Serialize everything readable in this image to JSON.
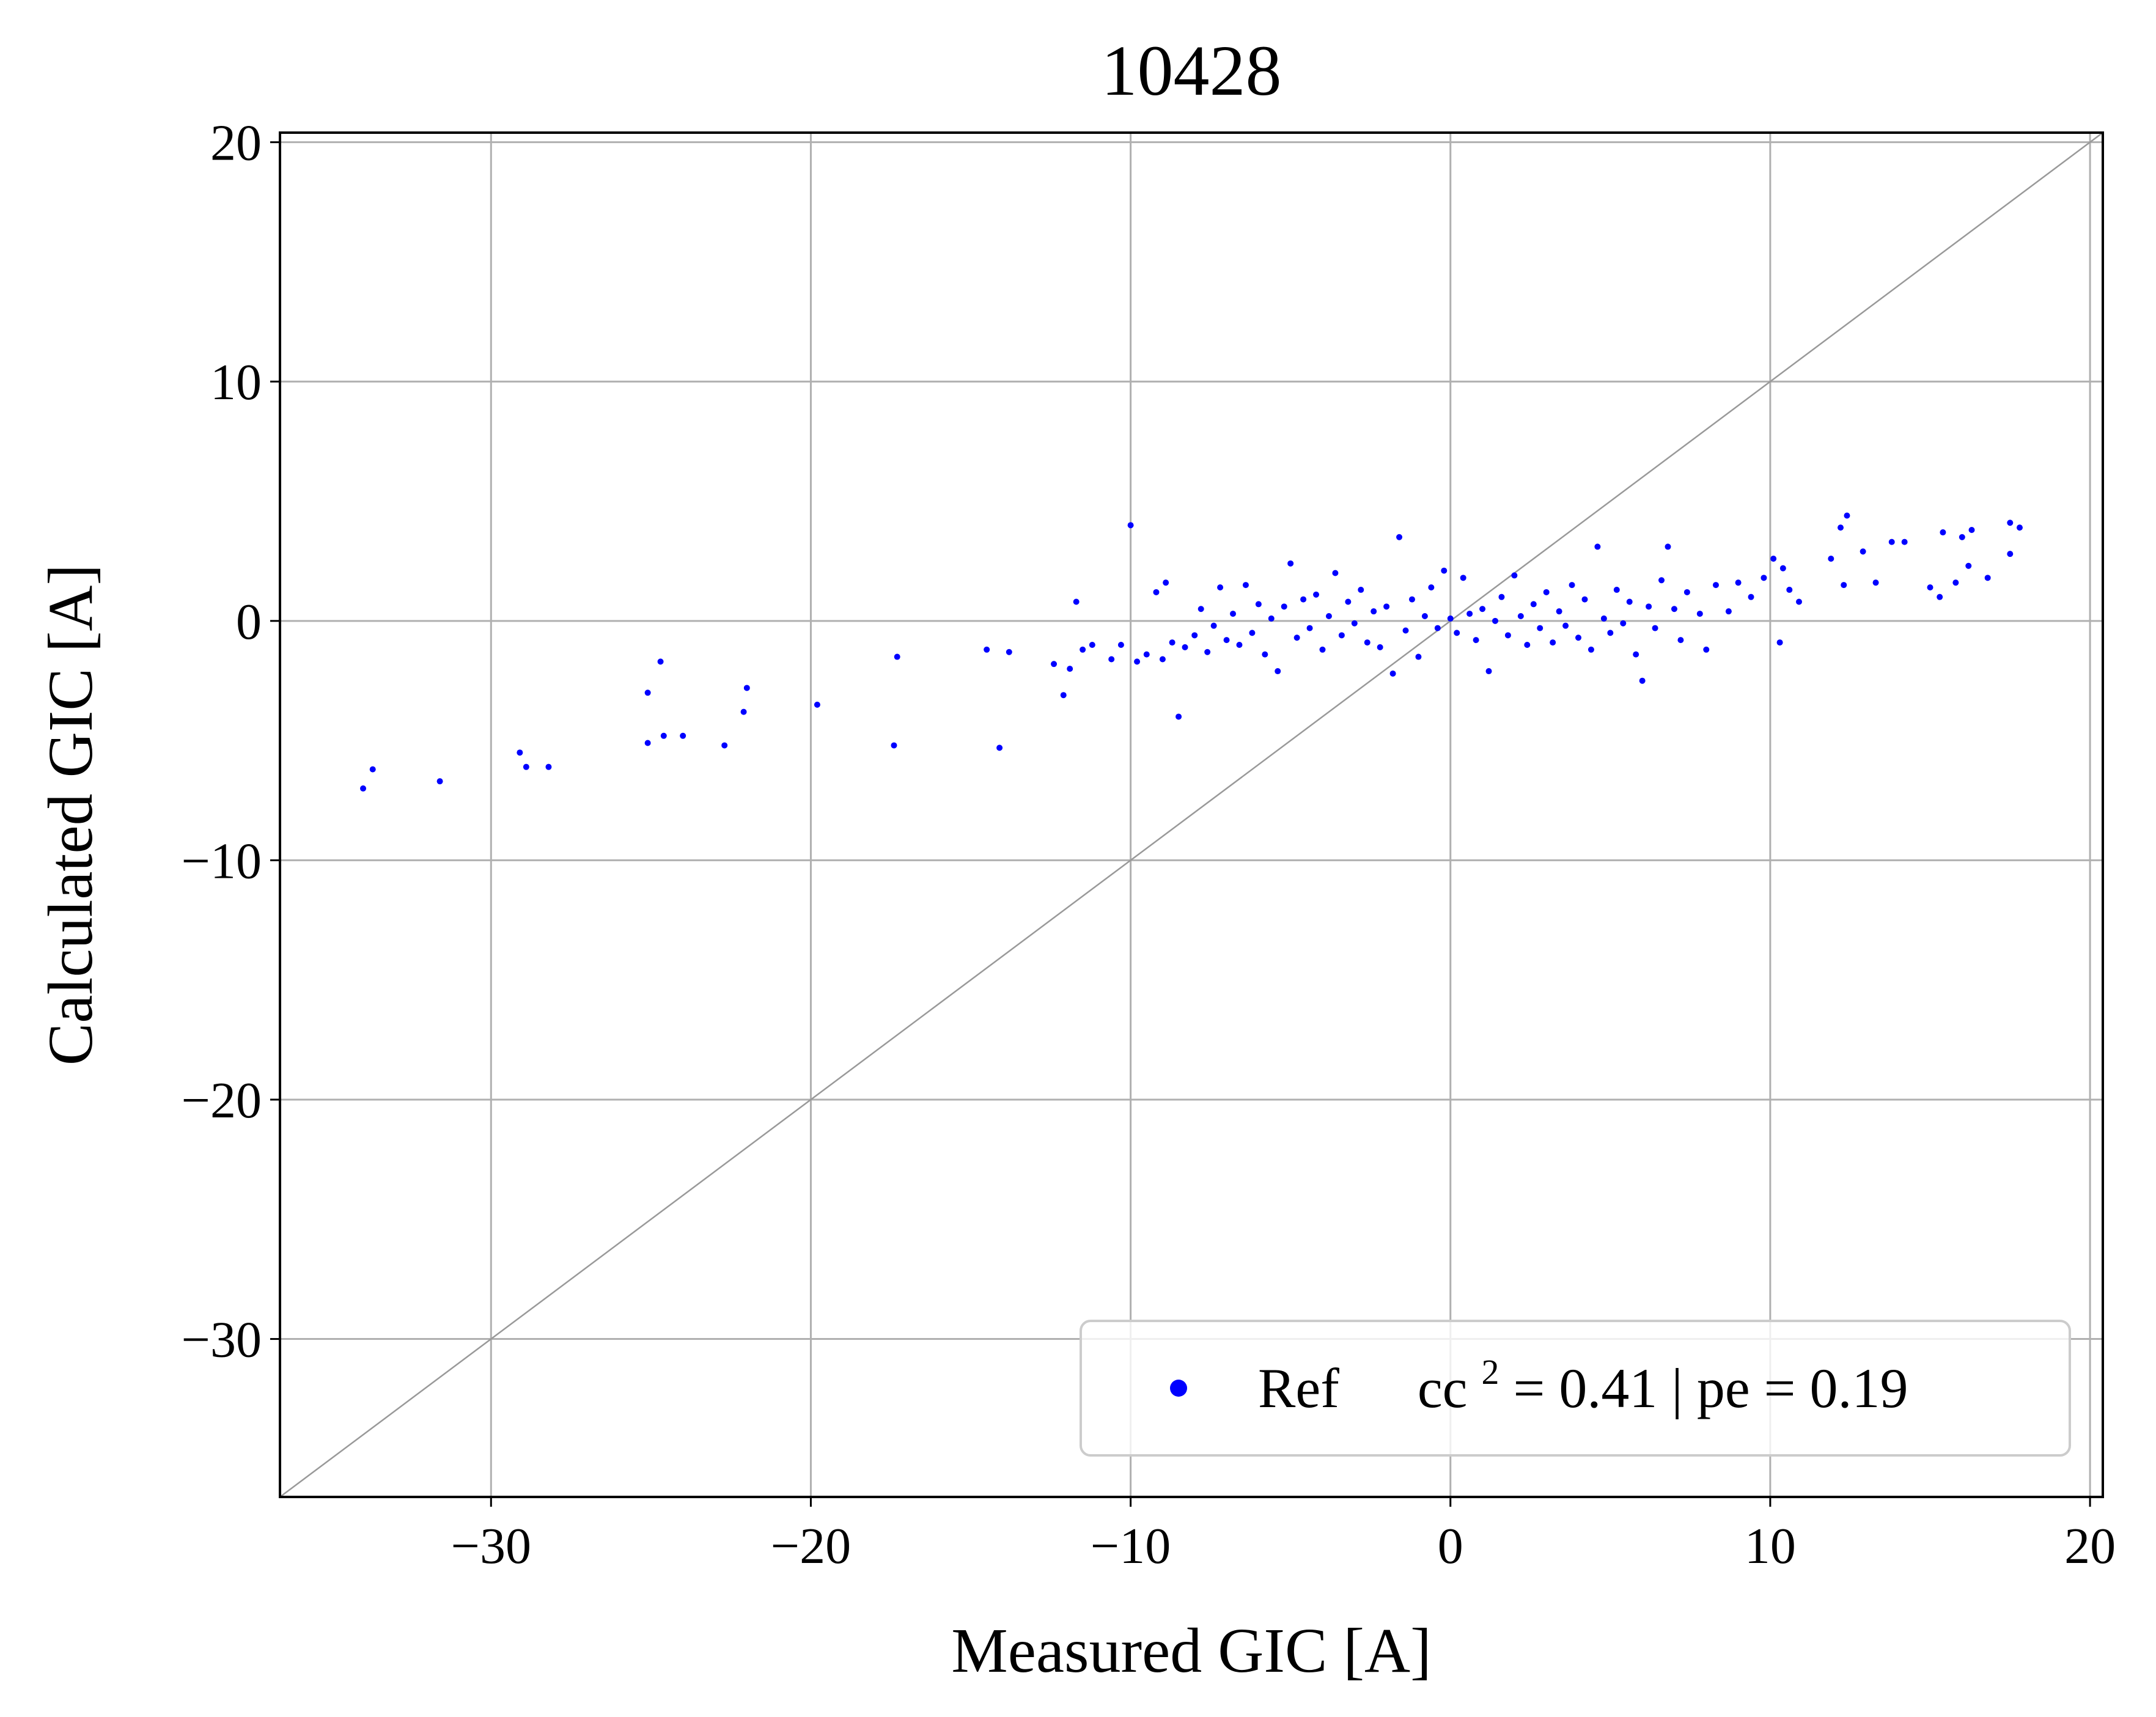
{
  "colors": {
    "series": "#0000ff",
    "grid": "#b0b0b0",
    "identity_line": "#999999",
    "legend_border": "#cccccc"
  },
  "chart_data": {
    "type": "scatter",
    "title": "10428",
    "xlabel": "Measured GIC [A]",
    "ylabel": "Calculated GIC [A]",
    "xlim": [
      -36.6,
      20.4
    ],
    "ylim": [
      -36.6,
      20.4
    ],
    "xticks": [
      -30,
      -20,
      -10,
      0,
      10,
      20
    ],
    "yticks": [
      -30,
      -20,
      -10,
      0,
      10,
      20
    ],
    "xtick_labels": [
      "−30",
      "−20",
      "−10",
      "0",
      "10",
      "20"
    ],
    "ytick_labels": [
      "−30",
      "−20",
      "−10",
      "0",
      "10",
      "20"
    ],
    "grid": true,
    "reference_line": "y = x",
    "legend": {
      "position": "lower-right",
      "entries": [
        {
          "series": "Ref",
          "label_name": "Ref",
          "metrics_prefix": "cc",
          "metrics_superscript": "2",
          "metrics_suffix": " = 0.41 | pe = 0.19"
        }
      ]
    },
    "series": [
      {
        "name": "Ref",
        "marker": "dot",
        "points": [
          [
            -34.0,
            -7.0
          ],
          [
            -33.7,
            -6.2
          ],
          [
            -31.6,
            -6.7
          ],
          [
            -29.1,
            -5.5
          ],
          [
            -28.9,
            -6.1
          ],
          [
            -28.2,
            -6.1
          ],
          [
            -25.1,
            -3.0
          ],
          [
            -25.1,
            -5.1
          ],
          [
            -24.7,
            -1.7
          ],
          [
            -24.6,
            -4.8
          ],
          [
            -24.0,
            -4.8
          ],
          [
            -22.7,
            -5.2
          ],
          [
            -22.1,
            -3.8
          ],
          [
            -22.0,
            -2.8
          ],
          [
            -19.8,
            -3.5
          ],
          [
            -17.4,
            -5.2
          ],
          [
            -17.3,
            -1.5
          ],
          [
            -14.5,
            -1.2
          ],
          [
            -14.1,
            -5.3
          ],
          [
            -13.8,
            -1.3
          ],
          [
            -12.4,
            -1.8
          ],
          [
            -12.1,
            -3.1
          ],
          [
            -11.9,
            -2.0
          ],
          [
            -11.7,
            0.8
          ],
          [
            -11.5,
            -1.2
          ],
          [
            -11.2,
            -1.0
          ],
          [
            -10.6,
            -1.6
          ],
          [
            -10.3,
            -1.0
          ],
          [
            -10.0,
            4.0
          ],
          [
            -9.8,
            -1.7
          ],
          [
            -9.5,
            -1.4
          ],
          [
            -9.2,
            1.2
          ],
          [
            -9.0,
            -1.6
          ],
          [
            -8.9,
            1.6
          ],
          [
            -8.7,
            -0.9
          ],
          [
            -8.5,
            -4.0
          ],
          [
            -8.3,
            -1.1
          ],
          [
            -8.0,
            -0.6
          ],
          [
            -7.8,
            0.5
          ],
          [
            -7.6,
            -1.3
          ],
          [
            -7.4,
            -0.2
          ],
          [
            -7.2,
            1.4
          ],
          [
            -7.0,
            -0.8
          ],
          [
            -6.8,
            0.3
          ],
          [
            -6.6,
            -1.0
          ],
          [
            -6.4,
            1.5
          ],
          [
            -6.2,
            -0.5
          ],
          [
            -6.0,
            0.7
          ],
          [
            -5.8,
            -1.4
          ],
          [
            -5.6,
            0.1
          ],
          [
            -5.4,
            -2.1
          ],
          [
            -5.2,
            0.6
          ],
          [
            -5.0,
            2.4
          ],
          [
            -4.8,
            -0.7
          ],
          [
            -4.6,
            0.9
          ],
          [
            -4.4,
            -0.3
          ],
          [
            -4.2,
            1.1
          ],
          [
            -4.0,
            -1.2
          ],
          [
            -3.8,
            0.2
          ],
          [
            -3.6,
            2.0
          ],
          [
            -3.4,
            -0.6
          ],
          [
            -3.2,
            0.8
          ],
          [
            -3.0,
            -0.1
          ],
          [
            -2.8,
            1.3
          ],
          [
            -2.6,
            -0.9
          ],
          [
            -2.4,
            0.4
          ],
          [
            -2.2,
            -1.1
          ],
          [
            -2.0,
            0.6
          ],
          [
            -1.8,
            -2.2
          ],
          [
            -1.6,
            3.5
          ],
          [
            -1.4,
            -0.4
          ],
          [
            -1.2,
            0.9
          ],
          [
            -1.0,
            -1.5
          ],
          [
            -0.8,
            0.2
          ],
          [
            -0.6,
            1.4
          ],
          [
            -0.4,
            -0.3
          ],
          [
            -0.2,
            2.1
          ],
          [
            0.0,
            0.1
          ],
          [
            0.2,
            -0.5
          ],
          [
            0.4,
            1.8
          ],
          [
            0.6,
            0.3
          ],
          [
            0.8,
            -0.8
          ],
          [
            1.0,
            0.5
          ],
          [
            1.2,
            -2.1
          ],
          [
            1.4,
            0.0
          ],
          [
            1.6,
            1.0
          ],
          [
            1.8,
            -0.6
          ],
          [
            2.0,
            1.9
          ],
          [
            2.2,
            0.2
          ],
          [
            2.4,
            -1.0
          ],
          [
            2.6,
            0.7
          ],
          [
            2.8,
            -0.3
          ],
          [
            3.0,
            1.2
          ],
          [
            3.2,
            -0.9
          ],
          [
            3.4,
            0.4
          ],
          [
            3.6,
            -0.2
          ],
          [
            3.8,
            1.5
          ],
          [
            4.0,
            -0.7
          ],
          [
            4.2,
            0.9
          ],
          [
            4.4,
            -1.2
          ],
          [
            4.6,
            3.1
          ],
          [
            4.8,
            0.1
          ],
          [
            5.0,
            -0.5
          ],
          [
            5.2,
            1.3
          ],
          [
            5.4,
            -0.1
          ],
          [
            5.6,
            0.8
          ],
          [
            5.8,
            -1.4
          ],
          [
            6.0,
            -2.5
          ],
          [
            6.2,
            0.6
          ],
          [
            6.4,
            -0.3
          ],
          [
            6.6,
            1.7
          ],
          [
            6.8,
            3.1
          ],
          [
            7.0,
            0.5
          ],
          [
            7.2,
            -0.8
          ],
          [
            7.4,
            1.2
          ],
          [
            7.8,
            0.3
          ],
          [
            8.0,
            -1.2
          ],
          [
            8.3,
            1.5
          ],
          [
            8.7,
            0.4
          ],
          [
            9.0,
            1.6
          ],
          [
            9.4,
            1.0
          ],
          [
            9.8,
            1.8
          ],
          [
            10.1,
            2.6
          ],
          [
            10.4,
            2.2
          ],
          [
            10.6,
            1.3
          ],
          [
            10.3,
            -0.9
          ],
          [
            10.9,
            0.8
          ],
          [
            11.9,
            2.6
          ],
          [
            12.2,
            3.9
          ],
          [
            12.3,
            1.5
          ],
          [
            12.4,
            4.4
          ],
          [
            12.9,
            2.9
          ],
          [
            13.3,
            1.6
          ],
          [
            13.8,
            3.3
          ],
          [
            14.2,
            3.3
          ],
          [
            15.0,
            1.4
          ],
          [
            15.3,
            1.0
          ],
          [
            15.4,
            3.7
          ],
          [
            15.8,
            1.6
          ],
          [
            16.0,
            3.5
          ],
          [
            16.2,
            2.3
          ],
          [
            16.3,
            3.8
          ],
          [
            16.8,
            1.8
          ],
          [
            17.5,
            4.1
          ],
          [
            17.5,
            2.8
          ],
          [
            17.8,
            3.9
          ]
        ]
      }
    ]
  }
}
